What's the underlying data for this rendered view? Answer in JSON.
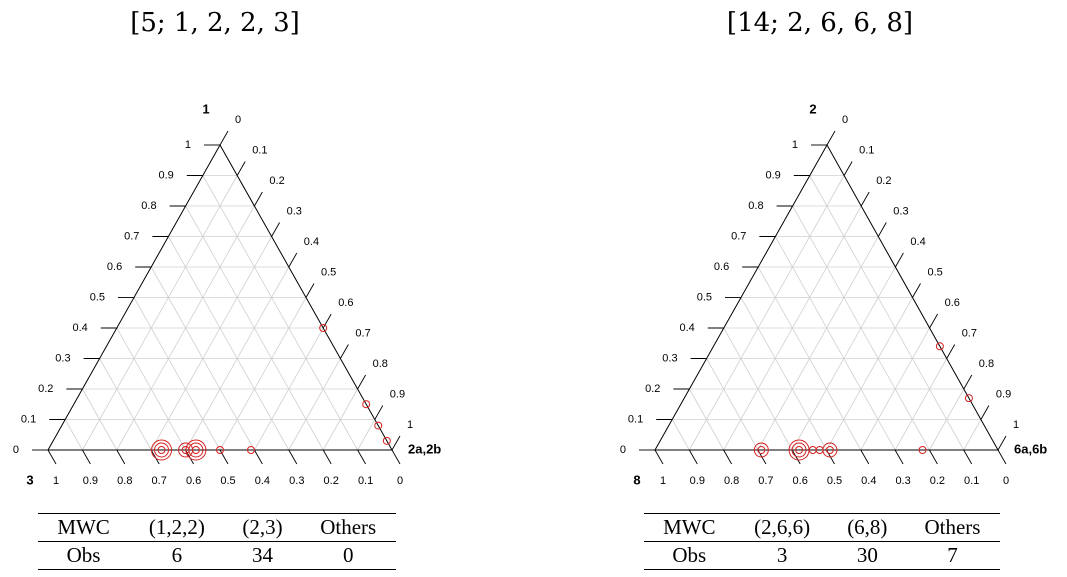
{
  "chart_data": [
    {
      "type": "ternary",
      "title": "[5; 1, 2, 2, 3]",
      "vertex_labels": {
        "top": "1",
        "right": "2a,2b",
        "bottom_left": "3"
      },
      "ticks": [
        "0",
        "0.1",
        "0.2",
        "0.3",
        "0.4",
        "0.5",
        "0.6",
        "0.7",
        "0.8",
        "0.9",
        "1"
      ],
      "grid": true,
      "points": [
        {
          "a": 0.4,
          "b": 0.6,
          "c": 0.0,
          "size": 1
        },
        {
          "a": 0.15,
          "b": 0.85,
          "c": 0.0,
          "size": 1
        },
        {
          "a": 0.08,
          "b": 0.92,
          "c": 0.0,
          "size": 1
        },
        {
          "a": 0.03,
          "b": 0.97,
          "c": 0.0,
          "size": 1
        },
        {
          "a": 0.0,
          "b": 0.33,
          "c": 0.67,
          "size": 3
        },
        {
          "a": 0.0,
          "b": 0.4,
          "c": 0.6,
          "size": 2
        },
        {
          "a": 0.0,
          "b": 0.43,
          "c": 0.57,
          "size": 3
        },
        {
          "a": 0.0,
          "b": 0.5,
          "c": 0.5,
          "size": 1
        },
        {
          "a": 0.0,
          "b": 0.59,
          "c": 0.41,
          "size": 1
        }
      ],
      "table": {
        "header": [
          "MWC",
          "(1,2,2)",
          "(2,3)",
          "Others"
        ],
        "row": [
          "Obs",
          "6",
          "34",
          "0"
        ]
      }
    },
    {
      "type": "ternary",
      "title": "[14; 2, 6, 6, 8]",
      "vertex_labels": {
        "top": "2",
        "right": "6a,6b",
        "bottom_left": "8"
      },
      "ticks": [
        "0",
        "0.1",
        "0.2",
        "0.3",
        "0.4",
        "0.5",
        "0.6",
        "0.7",
        "0.8",
        "0.9",
        "1"
      ],
      "grid": true,
      "points": [
        {
          "a": 0.34,
          "b": 0.66,
          "c": 0.0,
          "size": 1
        },
        {
          "a": 0.17,
          "b": 0.83,
          "c": 0.0,
          "size": 1
        },
        {
          "a": 0.0,
          "b": 0.31,
          "c": 0.69,
          "size": 2
        },
        {
          "a": 0.0,
          "b": 0.42,
          "c": 0.58,
          "size": 3
        },
        {
          "a": 0.0,
          "b": 0.46,
          "c": 0.54,
          "size": 1
        },
        {
          "a": 0.0,
          "b": 0.48,
          "c": 0.52,
          "size": 1
        },
        {
          "a": 0.0,
          "b": 0.51,
          "c": 0.49,
          "size": 2
        },
        {
          "a": 0.0,
          "b": 0.78,
          "c": 0.22,
          "size": 1
        }
      ],
      "table": {
        "header": [
          "MWC",
          "(2,6,6)",
          "(6,8)",
          "Others"
        ],
        "row": [
          "Obs",
          "3",
          "30",
          "7"
        ]
      }
    }
  ],
  "colors": {
    "points": "#d62020",
    "grid": "#d0d0d0",
    "axis": "#000000"
  }
}
